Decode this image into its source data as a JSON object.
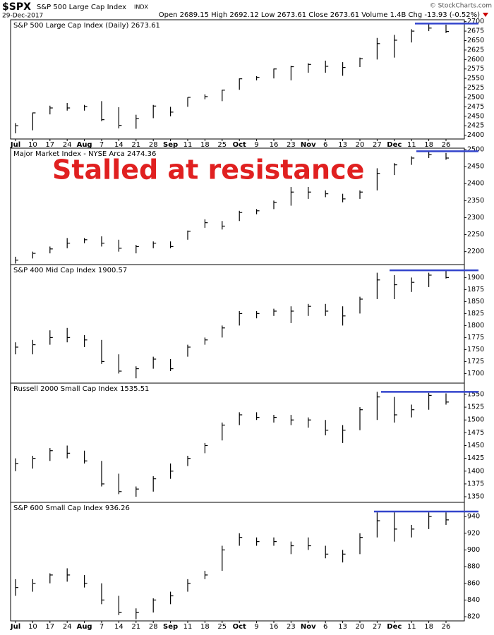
{
  "header": {
    "symbol": "$SPX",
    "name": "S&P 500 Large Cap Index",
    "exchange": "INDX",
    "date": "29-Dec-2017",
    "quote": "Open 2689.15  High 2692.12  Low 2673.61  Close 2673.61  Volume 1.4B  Chg -13.93 (-0.52%)",
    "credit": "© StockCharts.com"
  },
  "annotation": "Stalled at resistance",
  "chart_data": [
    {
      "type": "ohlc",
      "title": "S&P 500 Large Cap Index (Daily) 2673.61",
      "categories": [
        "Jul",
        "10",
        "17",
        "24",
        "Aug",
        "7",
        "14",
        "21",
        "28",
        "Sep",
        "11",
        "18",
        "25",
        "Oct",
        "9",
        "16",
        "23",
        "Nov",
        "6",
        "13",
        "20",
        "27",
        "Dec",
        "11",
        "18",
        "26"
      ],
      "high": [
        2432,
        2460,
        2478,
        2485,
        2480,
        2490,
        2474,
        2454,
        2480,
        2475,
        2500,
        2508,
        2520,
        2550,
        2556,
        2576,
        2583,
        2590,
        2597,
        2593,
        2605,
        2657,
        2665,
        2680,
        2695,
        2692
      ],
      "low": [
        2405,
        2413,
        2455,
        2465,
        2465,
        2437,
        2418,
        2417,
        2445,
        2450,
        2475,
        2495,
        2490,
        2520,
        2545,
        2550,
        2545,
        2565,
        2565,
        2557,
        2580,
        2600,
        2605,
        2645,
        2675,
        2670
      ],
      "close": [
        2425,
        2459,
        2472,
        2472,
        2476,
        2441,
        2426,
        2444,
        2477,
        2461,
        2500,
        2502,
        2519,
        2549,
        2553,
        2575,
        2581,
        2587,
        2582,
        2579,
        2602,
        2642,
        2651,
        2675,
        2683,
        2674
      ],
      "ylim": [
        2390,
        2705
      ],
      "yticks": [
        2400,
        2425,
        2450,
        2475,
        2500,
        2525,
        2550,
        2575,
        2600,
        2625,
        2650,
        2675,
        2700
      ],
      "resistance": 2695,
      "color": "#000000",
      "resistance_color": "#3344cc"
    },
    {
      "type": "ohlc",
      "title": "Major Market Index - NYSE Arca 2474.36",
      "high": [
        2185,
        2200,
        2215,
        2240,
        2240,
        2245,
        2235,
        2220,
        2230,
        2230,
        2262,
        2295,
        2290,
        2320,
        2325,
        2350,
        2390,
        2390,
        2380,
        2370,
        2380,
        2445,
        2460,
        2480,
        2495,
        2490
      ],
      "low": [
        2165,
        2180,
        2195,
        2210,
        2225,
        2215,
        2200,
        2195,
        2210,
        2210,
        2235,
        2270,
        2265,
        2290,
        2310,
        2325,
        2335,
        2355,
        2360,
        2345,
        2355,
        2380,
        2425,
        2455,
        2475,
        2470
      ],
      "close": [
        2175,
        2195,
        2208,
        2225,
        2235,
        2225,
        2210,
        2215,
        2225,
        2215,
        2260,
        2285,
        2275,
        2315,
        2320,
        2345,
        2375,
        2375,
        2370,
        2355,
        2375,
        2430,
        2455,
        2475,
        2485,
        2475
      ],
      "ylim": [
        2162,
        2504
      ],
      "yticks": [
        2200,
        2250,
        2300,
        2350,
        2400,
        2450,
        2500
      ],
      "resistance": 2495,
      "color": "#000000",
      "resistance_color": "#3344cc"
    },
    {
      "type": "ohlc",
      "title": "S&P 400 Mid Cap Index 1900.57",
      "high": [
        1765,
        1770,
        1790,
        1795,
        1780,
        1770,
        1740,
        1715,
        1735,
        1730,
        1760,
        1775,
        1800,
        1830,
        1830,
        1835,
        1840,
        1845,
        1845,
        1840,
        1860,
        1910,
        1905,
        1900,
        1910,
        1915
      ],
      "low": [
        1740,
        1740,
        1760,
        1765,
        1755,
        1720,
        1700,
        1690,
        1710,
        1705,
        1735,
        1760,
        1775,
        1800,
        1815,
        1820,
        1805,
        1820,
        1820,
        1800,
        1825,
        1855,
        1855,
        1870,
        1880,
        1898
      ],
      "close": [
        1755,
        1760,
        1775,
        1775,
        1770,
        1725,
        1705,
        1710,
        1730,
        1710,
        1755,
        1770,
        1795,
        1825,
        1825,
        1830,
        1830,
        1840,
        1830,
        1820,
        1855,
        1895,
        1885,
        1890,
        1905,
        1900
      ],
      "ylim": [
        1680,
        1927
      ],
      "yticks": [
        1700,
        1725,
        1750,
        1775,
        1800,
        1825,
        1850,
        1875,
        1900
      ],
      "resistance": 1915,
      "color": "#000000",
      "resistance_color": "#3344cc"
    },
    {
      "type": "ohlc",
      "title": "Russell 2000 Small Cap Index 1535.51",
      "high": [
        1425,
        1430,
        1445,
        1450,
        1440,
        1420,
        1395,
        1370,
        1390,
        1415,
        1430,
        1455,
        1495,
        1515,
        1515,
        1510,
        1510,
        1505,
        1500,
        1490,
        1525,
        1555,
        1545,
        1530,
        1553,
        1552
      ],
      "low": [
        1400,
        1405,
        1420,
        1425,
        1415,
        1370,
        1355,
        1350,
        1360,
        1385,
        1410,
        1435,
        1460,
        1490,
        1500,
        1495,
        1490,
        1485,
        1470,
        1455,
        1480,
        1500,
        1495,
        1505,
        1520,
        1530
      ],
      "close": [
        1415,
        1425,
        1440,
        1435,
        1420,
        1375,
        1360,
        1365,
        1385,
        1400,
        1425,
        1450,
        1490,
        1510,
        1505,
        1505,
        1500,
        1500,
        1480,
        1480,
        1520,
        1545,
        1510,
        1520,
        1548,
        1535
      ],
      "ylim": [
        1339,
        1572
      ],
      "yticks": [
        1350,
        1375,
        1400,
        1425,
        1450,
        1475,
        1500,
        1525,
        1550
      ],
      "resistance": 1555,
      "color": "#000000",
      "resistance_color": "#3344cc"
    },
    {
      "type": "ohlc",
      "title": "S&P 600 Small Cap Index 936.26",
      "categories": [
        "Jul",
        "10",
        "17",
        "24",
        "Aug",
        "7",
        "14",
        "21",
        "28",
        "Sep",
        "11",
        "18",
        "25",
        "Oct",
        "9",
        "16",
        "23",
        "Nov",
        "6",
        "13",
        "20",
        "27",
        "Dec",
        "11",
        "18",
        "26"
      ],
      "high": [
        865,
        865,
        872,
        878,
        870,
        860,
        845,
        830,
        842,
        850,
        865,
        875,
        905,
        920,
        915,
        915,
        910,
        915,
        905,
        900,
        920,
        945,
        945,
        930,
        945,
        945
      ],
      "low": [
        845,
        850,
        860,
        862,
        855,
        835,
        822,
        817,
        825,
        835,
        850,
        865,
        875,
        905,
        905,
        905,
        895,
        900,
        890,
        885,
        895,
        915,
        910,
        915,
        925,
        930
      ],
      "close": [
        855,
        860,
        870,
        870,
        860,
        840,
        825,
        825,
        840,
        845,
        860,
        870,
        900,
        915,
        910,
        910,
        905,
        905,
        895,
        895,
        915,
        935,
        925,
        925,
        940,
        936
      ],
      "ylim": [
        815,
        957
      ],
      "yticks": [
        820,
        840,
        860,
        880,
        900,
        920,
        940
      ],
      "resistance": 946,
      "color": "#000000",
      "resistance_color": "#3344cc"
    }
  ]
}
